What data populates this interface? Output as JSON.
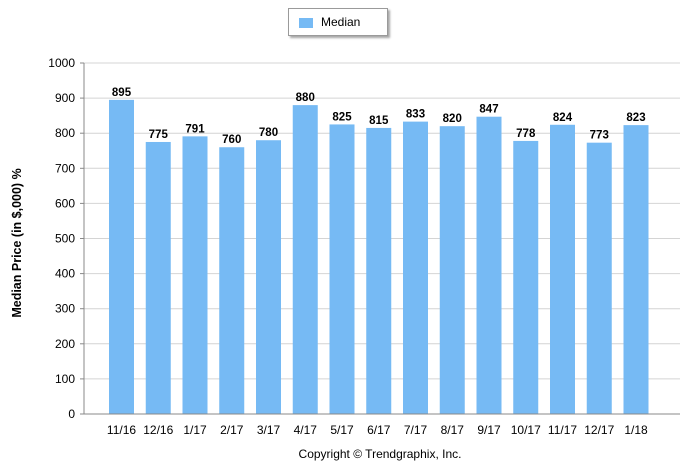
{
  "chart_data": {
    "type": "bar",
    "categories": [
      "11/16",
      "12/16",
      "1/17",
      "2/17",
      "3/17",
      "4/17",
      "5/17",
      "6/17",
      "7/17",
      "8/17",
      "9/17",
      "10/17",
      "11/17",
      "12/17",
      "1/18"
    ],
    "series": [
      {
        "name": "Median",
        "values": [
          895,
          775,
          791,
          760,
          780,
          880,
          825,
          815,
          833,
          820,
          847,
          778,
          824,
          773,
          823
        ]
      }
    ],
    "ylabel": "Median Price (in $,000) %",
    "ylim": [
      0,
      1000
    ],
    "yticks": [
      0,
      100,
      200,
      300,
      400,
      500,
      600,
      700,
      800,
      900,
      1000
    ],
    "grid": true,
    "legend_position": "top-center",
    "bar_color": "#76baf4"
  },
  "footer": "Copyright © Trendgraphix, Inc."
}
